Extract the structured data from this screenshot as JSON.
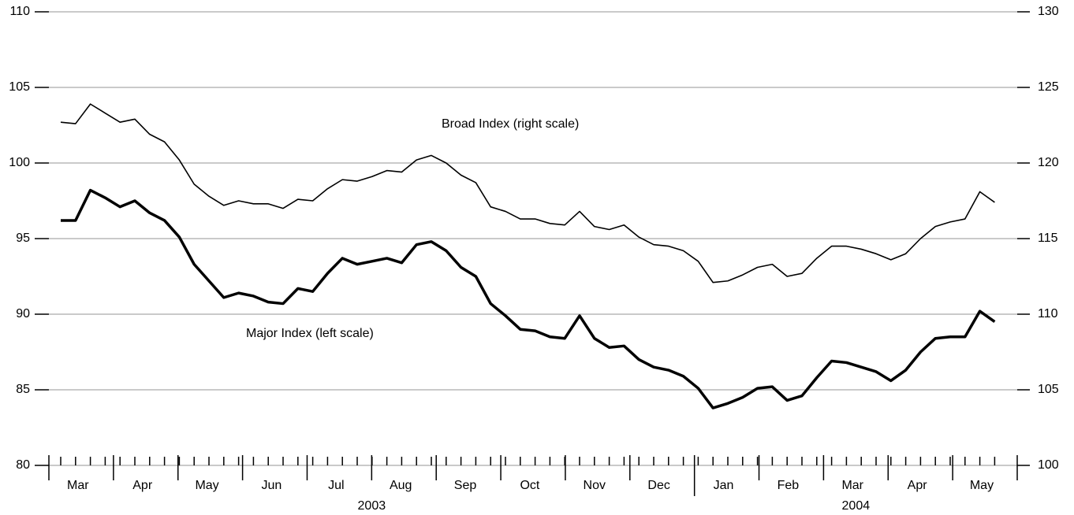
{
  "chart_data": {
    "type": "line",
    "months": [
      "Mar",
      "Apr",
      "May",
      "Jun",
      "Jul",
      "Aug",
      "Sep",
      "Oct",
      "Nov",
      "Dec",
      "Jan",
      "Feb",
      "Mar",
      "Apr",
      "May"
    ],
    "years": [
      "2003",
      "2004"
    ],
    "series": [
      {
        "name": "Major Index (left scale)",
        "color": "#000000",
        "axis": "y",
        "values": [
          96.2,
          96.2,
          98.2,
          97.7,
          97.1,
          97.5,
          96.7,
          96.2,
          95.1,
          93.3,
          92.2,
          91.1,
          91.4,
          91.2,
          90.8,
          90.7,
          91.7,
          91.5,
          92.7,
          93.7,
          93.3,
          93.5,
          93.7,
          93.4,
          94.6,
          94.8,
          94.2,
          93.1,
          92.5,
          90.7,
          89.9,
          89.0,
          88.9,
          88.5,
          88.4,
          89.9,
          88.4,
          87.8,
          87.9,
          87.0,
          86.5,
          86.3,
          85.9,
          85.1,
          83.8,
          84.1,
          84.5,
          85.1,
          85.2,
          84.3,
          84.6,
          85.8,
          86.9,
          86.8,
          86.5,
          86.2,
          85.6,
          86.3,
          87.5,
          88.4,
          88.5,
          88.5,
          90.2,
          89.5
        ]
      },
      {
        "name": "Broad Index (right scale)",
        "color": "#000000",
        "axis": "y2",
        "values": [
          122.7,
          122.6,
          123.9,
          123.3,
          122.7,
          122.9,
          121.9,
          121.4,
          120.2,
          118.6,
          117.8,
          117.2,
          117.5,
          117.3,
          117.3,
          117.0,
          117.6,
          117.5,
          118.3,
          118.9,
          118.8,
          119.1,
          119.5,
          119.4,
          120.2,
          120.5,
          120.0,
          119.2,
          118.7,
          117.1,
          116.8,
          116.3,
          116.3,
          116.0,
          115.9,
          116.8,
          115.8,
          115.6,
          115.9,
          115.1,
          114.6,
          114.5,
          114.2,
          113.5,
          112.1,
          112.2,
          112.6,
          113.1,
          113.3,
          112.5,
          112.7,
          113.7,
          114.5,
          114.5,
          114.3,
          114.0,
          113.6,
          114.0,
          115.0,
          115.8,
          116.1,
          116.3,
          118.1,
          117.4
        ]
      }
    ],
    "ylim": [
      80,
      110
    ],
    "yticks": [
      80,
      85,
      90,
      95,
      100,
      105,
      110
    ],
    "y2lim": [
      100,
      130
    ],
    "y2ticks": [
      100,
      105,
      110,
      115,
      120,
      125,
      130
    ],
    "grid": true
  }
}
